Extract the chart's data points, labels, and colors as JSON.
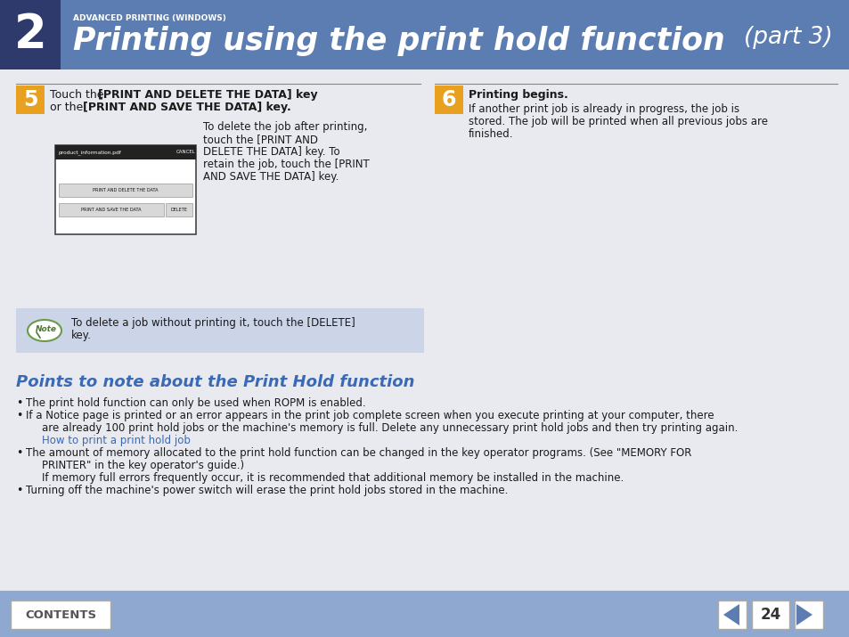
{
  "bg_color": "#e8eaf0",
  "header_bg": "#5b7db1",
  "header_dark_bg": "#2d3a6b",
  "header_title": "Printing using the print hold function",
  "header_subtitle": "ADVANCED PRINTING (WINDOWS)",
  "header_part": "(part 3)",
  "header_num": "2",
  "section5_body": "To delete the job after printing,\ntouch the [PRINT AND\nDELETE THE DATA] key. To\nretain the job, touch the [PRINT\nAND SAVE THE DATA] key.",
  "section6_title": "Printing begins.",
  "section6_body": "If another print job is already in progress, the job is\nstored. The job will be printed when all previous jobs are\nfinished.",
  "note_line1": "To delete a job without printing it, touch the [DELETE]",
  "note_line2": "key.",
  "points_title": "Points to note about the Print Hold function",
  "bullet1": "The print hold function can only be used when ROPM is enabled.",
  "bullet2a": "If a Notice page is printed or an error appears in the print job complete screen when you execute printing at your computer, there",
  "bullet2b": "are already 100 print hold jobs or the machine's memory is full. Delete any unnecessary print hold jobs and then try printing again.",
  "bullet2c": "How to print a print hold job",
  "bullet3a": "The amount of memory allocated to the print hold function can be changed in the key operator programs. (See \"MEMORY FOR",
  "bullet3b": "PRINTER\" in the key operator's guide.)",
  "bullet3c": "If memory full errors frequently occur, it is recommended that additional memory be installed in the machine.",
  "bullet4": "Turning off the machine's power switch will erase the print hold jobs stored in the machine.",
  "footer_bg": "#8fa8cf",
  "footer_contents": "CONTENTS",
  "footer_page": "24",
  "note_bg": "#ccd4e8",
  "section_num_color": "#e8a020",
  "text_color": "#1a1a1a",
  "points_color": "#3a6ab5",
  "link_color": "#3a6ab5",
  "screen_title_bar_color": "#222222",
  "screen_btn_color": "#d8d8d8"
}
